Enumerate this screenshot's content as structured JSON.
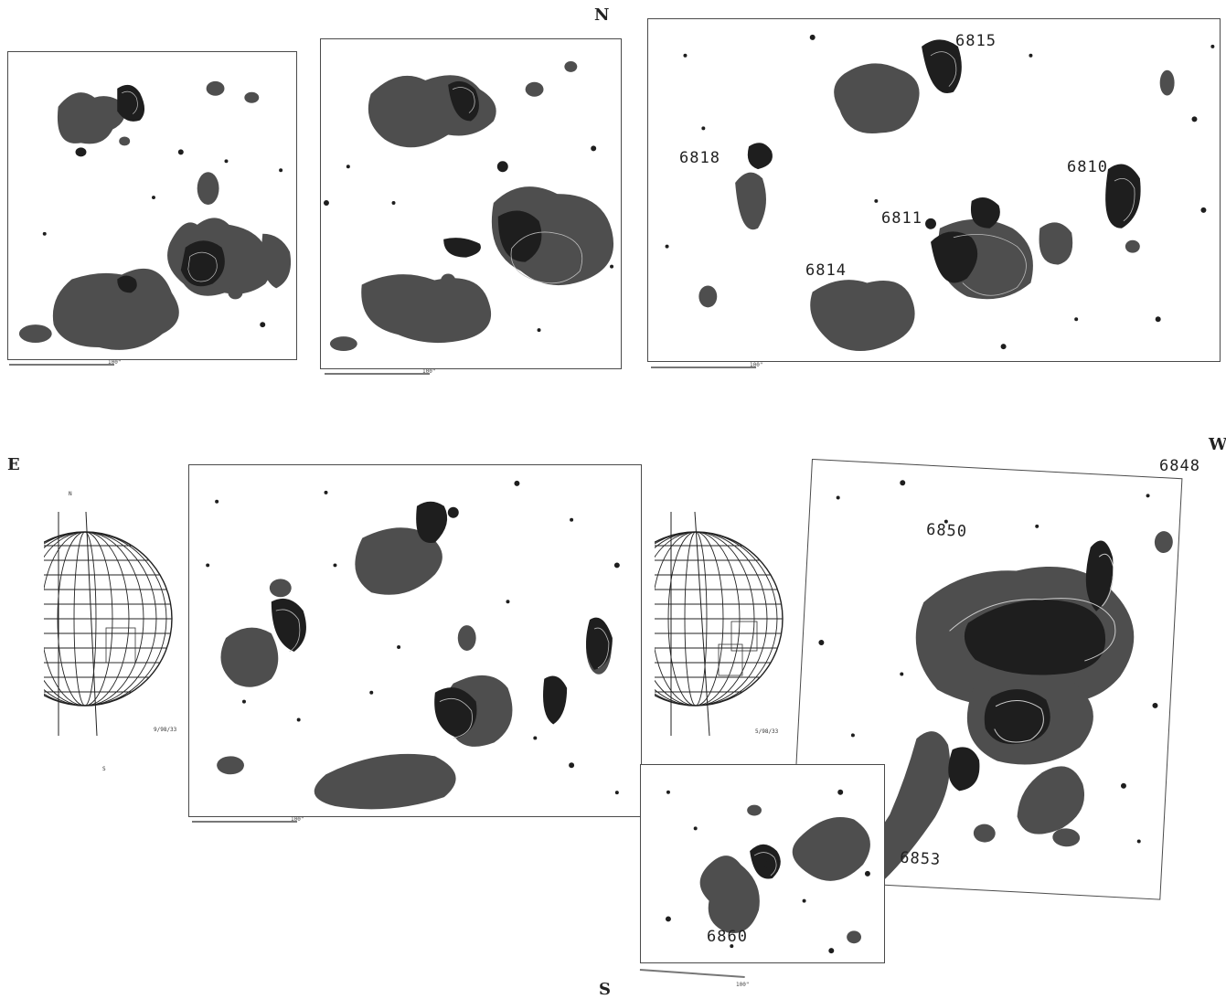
{
  "directions": {
    "north": "N",
    "south": "S",
    "east": "E",
    "west": "W"
  },
  "scale_label": "100\"",
  "globe_1": {
    "top_letter": "N",
    "bottom_letter": "S",
    "date": "9/98/33"
  },
  "globe_2": {
    "date": "5/98/33"
  },
  "regions": {
    "r6815": "6815",
    "r6818": "6818",
    "r6810": "6810",
    "r6811": "6811",
    "r6814": "6814",
    "r6848": "6848",
    "r6850": "6850",
    "r6853": "6853",
    "r6860": "6860"
  },
  "colors": {
    "fill_dark": "#1e1e1e",
    "fill_mid": "#4e4e4e",
    "frame": "#4a4a4a"
  }
}
